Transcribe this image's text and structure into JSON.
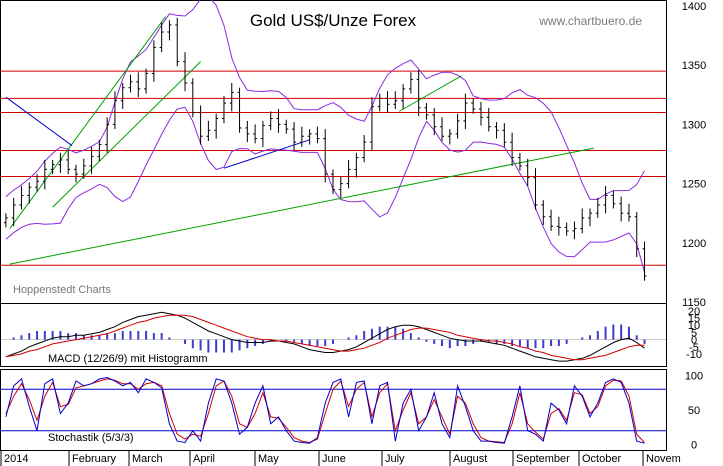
{
  "chart_data": {
    "type": "candlestick",
    "title": "Gold US$/Unze Forex",
    "watermark": "www.chartbuero.de",
    "credit": "Hoppenstedt Charts",
    "x_tick_labels": [
      "2014",
      "February",
      "March",
      "April",
      "May",
      "June",
      "July",
      "August",
      "September",
      "October",
      "Novem"
    ],
    "price": {
      "ylim": [
        1150,
        1400
      ],
      "y_ticks": [
        "1400",
        "1350",
        "1300",
        "1250",
        "1200",
        "1150"
      ],
      "closes": [
        1221,
        1232,
        1240,
        1247,
        1252,
        1262,
        1266,
        1270,
        1262,
        1258,
        1265,
        1273,
        1283,
        1300,
        1320,
        1331,
        1336,
        1330,
        1343,
        1365,
        1378,
        1384,
        1353,
        1335,
        1310,
        1290,
        1295,
        1305,
        1318,
        1327,
        1297,
        1292,
        1288,
        1299,
        1305,
        1300,
        1296,
        1285,
        1290,
        1292,
        1288,
        1258,
        1245,
        1250,
        1262,
        1272,
        1285,
        1315,
        1322,
        1317,
        1320,
        1330,
        1338,
        1314,
        1308,
        1298,
        1290,
        1292,
        1303,
        1318,
        1313,
        1306,
        1298,
        1295,
        1285,
        1272,
        1265,
        1255,
        1232,
        1222,
        1214,
        1213,
        1210,
        1212,
        1221,
        1225,
        1232,
        1240,
        1233,
        1225,
        1222,
        1195,
        1172
      ],
      "horizontal_levels": [
        1345,
        1322,
        1310,
        1278,
        1256,
        1181
      ],
      "trendlines": [
        {
          "color": "#00a000",
          "from": [
            0.5,
            1182
          ],
          "to": [
            75.5,
            1280
          ]
        },
        {
          "color": "#00a000",
          "from": [
            0.5,
            1212
          ],
          "to": [
            20.5,
            1391
          ]
        },
        {
          "color": "#00a000",
          "from": [
            6.0,
            1230
          ],
          "to": [
            25.0,
            1353
          ]
        },
        {
          "color": "#00a000",
          "from": [
            50.5,
            1311
          ],
          "to": [
            58.5,
            1341
          ]
        },
        {
          "color": "#0000cc",
          "from": [
            0.0,
            1323
          ],
          "to": [
            8.5,
            1282
          ]
        },
        {
          "color": "#0000cc",
          "from": [
            28.0,
            1263
          ],
          "to": [
            39.0,
            1287
          ]
        }
      ],
      "bollinger_color": "#8a2be2"
    },
    "macd": {
      "label": "MACD (12/26/9) mit Histogramm",
      "ylim": [
        -17,
        22
      ],
      "y_ticks": [
        "20",
        "15",
        "10",
        "5",
        "0",
        "-5",
        "-10"
      ],
      "macd": [
        -12,
        -10,
        -8,
        -5,
        -3,
        -1,
        1,
        2,
        2,
        3,
        3,
        4,
        5,
        7,
        9,
        12,
        14,
        16,
        17,
        18,
        19,
        18,
        17,
        15,
        12,
        9,
        6,
        4,
        2,
        0,
        -1,
        -2,
        -2,
        -2,
        -1,
        -1,
        -2,
        -3,
        -5,
        -7,
        -8,
        -9,
        -9,
        -8,
        -7,
        -5,
        -2,
        1,
        4,
        7,
        9,
        10,
        10,
        9,
        7,
        5,
        3,
        1,
        0,
        -1,
        -1,
        -1,
        -2,
        -3,
        -4,
        -6,
        -8,
        -10,
        -12,
        -13,
        -14,
        -15,
        -15,
        -14,
        -13,
        -11,
        -8,
        -5,
        -2,
        0,
        1,
        -2,
        -6
      ],
      "signal": [
        -12,
        -11,
        -10,
        -8,
        -7,
        -5,
        -3,
        -2,
        -1,
        0,
        1,
        2,
        3,
        4,
        6,
        8,
        10,
        12,
        13,
        15,
        16,
        17,
        17,
        17,
        16,
        14,
        12,
        10,
        8,
        6,
        4,
        2,
        1,
        0,
        0,
        -1,
        -1,
        -2,
        -3,
        -4,
        -5,
        -6,
        -7,
        -8,
        -8,
        -7,
        -6,
        -4,
        -2,
        1,
        3,
        5,
        7,
        8,
        8,
        7,
        6,
        5,
        3,
        2,
        1,
        0,
        -1,
        -1,
        -2,
        -3,
        -5,
        -6,
        -8,
        -9,
        -11,
        -12,
        -13,
        -14,
        -14,
        -13,
        -12,
        -11,
        -9,
        -7,
        -5,
        -4,
        -4
      ]
    },
    "stochastic": {
      "label": "Stochastik (5/3/3)",
      "ylim": [
        -5,
        105
      ],
      "y_ticks": [
        "100",
        "50",
        "0"
      ],
      "levels": [
        80,
        20
      ],
      "k": [
        40,
        85,
        95,
        55,
        20,
        88,
        95,
        45,
        60,
        92,
        85,
        88,
        95,
        97,
        92,
        85,
        90,
        75,
        95,
        90,
        82,
        30,
        5,
        3,
        20,
        5,
        60,
        95,
        92,
        60,
        15,
        25,
        60,
        85,
        30,
        40,
        20,
        5,
        3,
        2,
        10,
        60,
        90,
        95,
        40,
        90,
        92,
        30,
        85,
        90,
        5,
        60,
        80,
        20,
        40,
        75,
        30,
        10,
        85,
        55,
        20,
        5,
        5,
        3,
        2,
        40,
        85,
        20,
        15,
        5,
        60,
        50,
        30,
        85,
        70,
        40,
        60,
        90,
        95,
        90,
        60,
        5,
        2
      ],
      "d": [
        45,
        70,
        88,
        65,
        35,
        70,
        90,
        55,
        58,
        82,
        85,
        88,
        92,
        95,
        93,
        88,
        88,
        80,
        88,
        90,
        85,
        45,
        15,
        8,
        15,
        12,
        45,
        85,
        92,
        70,
        30,
        25,
        45,
        75,
        40,
        38,
        25,
        10,
        5,
        3,
        8,
        45,
        80,
        92,
        55,
        80,
        90,
        40,
        75,
        88,
        20,
        50,
        75,
        30,
        40,
        65,
        40,
        15,
        70,
        60,
        30,
        10,
        5,
        4,
        3,
        30,
        75,
        30,
        18,
        8,
        45,
        52,
        35,
        75,
        72,
        45,
        55,
        85,
        93,
        92,
        70,
        15,
        3
      ]
    }
  }
}
